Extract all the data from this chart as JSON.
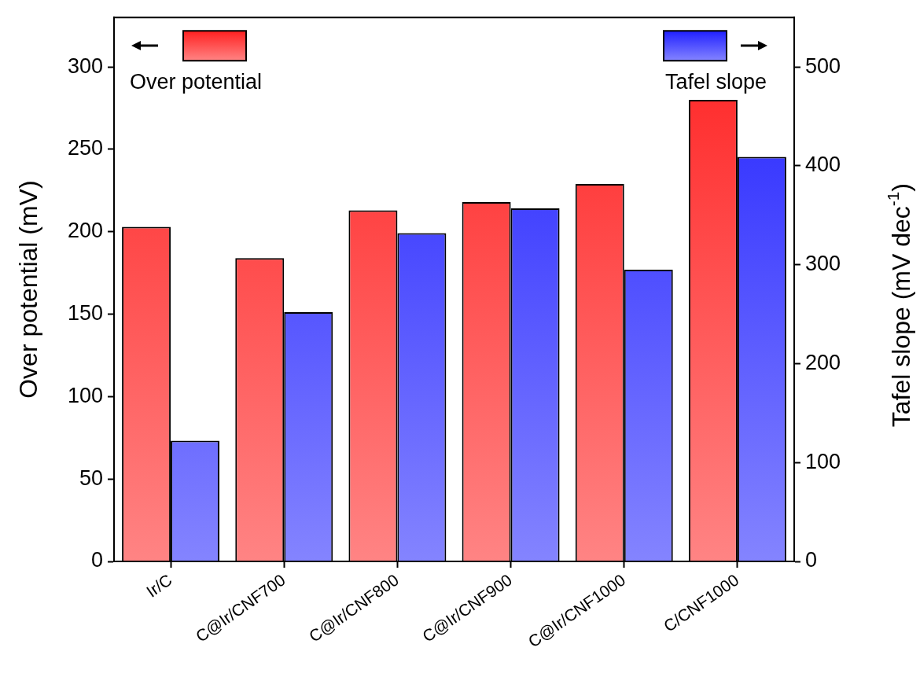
{
  "chart_data": {
    "type": "bar",
    "categories": [
      "Ir/C",
      "C@Ir/CNF700",
      "C@Ir/CNF800",
      "C@Ir/CNF900",
      "C@Ir/CNF1000",
      "C/CNF1000"
    ],
    "series": [
      {
        "name": "Over potential",
        "color": "#ff2020",
        "values": [
          203,
          184,
          213,
          218,
          229,
          280
        ]
      },
      {
        "name": "Tafel slope",
        "color": "#2020ff",
        "axis": "y2",
        "values": [
          122,
          252,
          332,
          357,
          295,
          409
        ]
      }
    ],
    "ylabel": "Over potential (mV)",
    "y2label": "Tafel slope (mV dec$^{-1}$)",
    "ylim": [
      0,
      330
    ],
    "yticks": [
      0,
      50,
      100,
      150,
      200,
      250,
      300
    ],
    "y2lim": [
      0,
      550
    ],
    "y2ticks": [
      0,
      100,
      200,
      300,
      400,
      500
    ],
    "grid": false,
    "legend": "top"
  }
}
